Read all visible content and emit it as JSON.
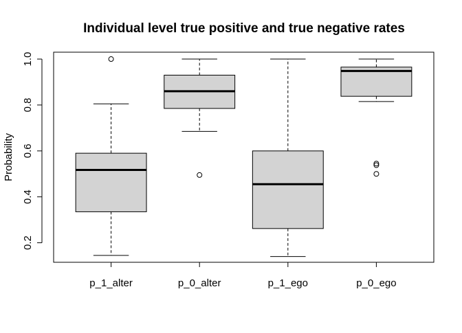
{
  "chart_data": {
    "type": "boxplot",
    "title": "Individual level true positive and true negative rates",
    "xlabel": "",
    "ylabel": "Probability",
    "ylim": [
      0.115,
      1.03
    ],
    "yticks": [
      "0.2",
      "0.4",
      "0.6",
      "0.8",
      "1.0"
    ],
    "categories": [
      "p_1_alter",
      "p_0_alter",
      "p_1_ego",
      "p_0_ego"
    ],
    "box_color": "#d3d3d3",
    "boxes": [
      {
        "category": "p_1_alter",
        "whisker_low": 0.145,
        "q1": 0.335,
        "median": 0.517,
        "q3": 0.59,
        "whisker_high": 0.805,
        "outliers": [
          1.0
        ]
      },
      {
        "category": "p_0_alter",
        "whisker_low": 0.685,
        "q1": 0.785,
        "median": 0.86,
        "q3": 0.93,
        "whisker_high": 1.0,
        "outliers": [
          0.495
        ]
      },
      {
        "category": "p_1_ego",
        "whisker_low": 0.14,
        "q1": 0.262,
        "median": 0.455,
        "q3": 0.6,
        "whisker_high": 1.0,
        "outliers": []
      },
      {
        "category": "p_0_ego",
        "whisker_low": 0.815,
        "q1": 0.838,
        "median": 0.948,
        "q3": 0.965,
        "whisker_high": 1.0,
        "outliers": [
          0.545,
          0.538,
          0.5
        ]
      }
    ]
  }
}
